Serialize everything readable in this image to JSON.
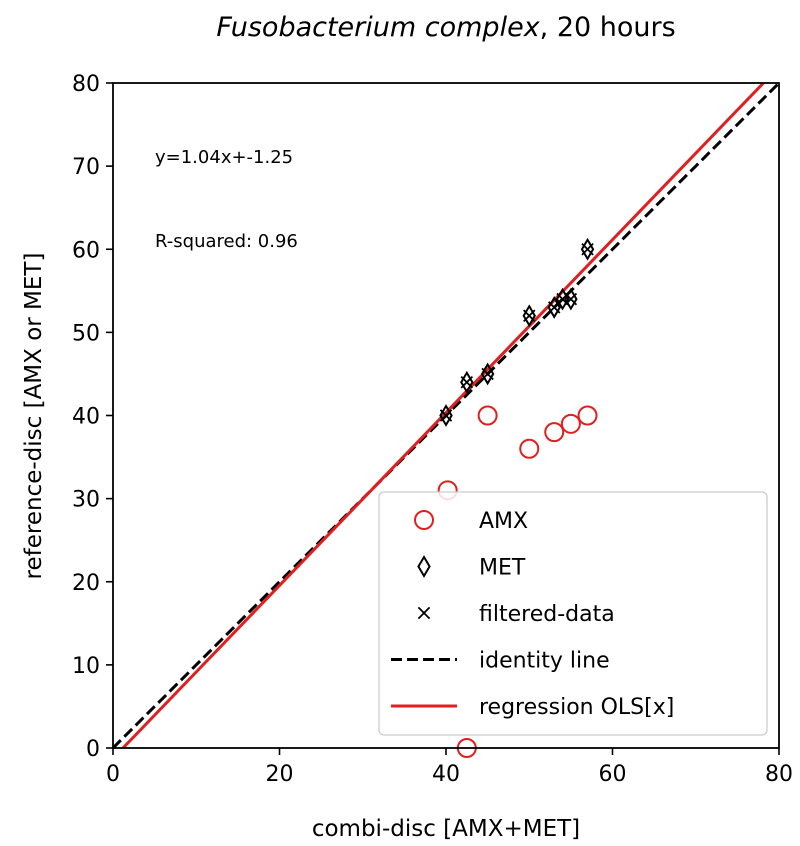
{
  "chart_data": {
    "type": "scatter",
    "title": {
      "italic": "Fusobacterium complex",
      "rest": ", 20 hours"
    },
    "xlabel": "combi-disc  [AMX+MET]",
    "ylabel": "reference-disc [AMX or MET]",
    "xlim": [
      0,
      80
    ],
    "ylim": [
      0,
      80
    ],
    "xticks": [
      0,
      20,
      40,
      60,
      80
    ],
    "yticks": [
      0,
      10,
      20,
      30,
      40,
      50,
      60,
      70,
      80
    ],
    "grid": false,
    "legend_position": "lower-right",
    "annotations": [
      "y=1.04x+-1.25",
      "R-squared:  0.96"
    ],
    "series": [
      {
        "name": "AMX",
        "marker": "open-circle",
        "color": "#e02020",
        "points": [
          {
            "x": 40.2,
            "y": 31
          },
          {
            "x": 42.5,
            "y": 0
          },
          {
            "x": 45,
            "y": 40
          },
          {
            "x": 50,
            "y": 36
          },
          {
            "x": 53,
            "y": 38
          },
          {
            "x": 55,
            "y": 39
          },
          {
            "x": 57,
            "y": 40
          }
        ]
      },
      {
        "name": "MET",
        "marker": "open-diamond",
        "color": "#000000",
        "points": [
          {
            "x": 40,
            "y": 40
          },
          {
            "x": 42.5,
            "y": 44
          },
          {
            "x": 45,
            "y": 45
          },
          {
            "x": 50,
            "y": 52
          },
          {
            "x": 53,
            "y": 53
          },
          {
            "x": 54,
            "y": 54
          },
          {
            "x": 55,
            "y": 54
          },
          {
            "x": 57,
            "y": 60
          }
        ]
      },
      {
        "name": "filtered-data",
        "marker": "x",
        "color": "#000000",
        "points": [
          {
            "x": 40,
            "y": 40
          },
          {
            "x": 42.5,
            "y": 44
          },
          {
            "x": 45,
            "y": 45
          },
          {
            "x": 50,
            "y": 52
          },
          {
            "x": 53,
            "y": 53
          },
          {
            "x": 54,
            "y": 54
          },
          {
            "x": 55,
            "y": 54
          },
          {
            "x": 57,
            "y": 60
          }
        ]
      },
      {
        "name": "identity line",
        "marker": "dashed-line",
        "color": "#000000",
        "line": {
          "slope": 1,
          "intercept": 0
        }
      },
      {
        "name": "regression OLS[x]",
        "marker": "solid-line",
        "color": "#e02020",
        "line": {
          "slope": 1.04,
          "intercept": -1.25
        }
      }
    ]
  }
}
